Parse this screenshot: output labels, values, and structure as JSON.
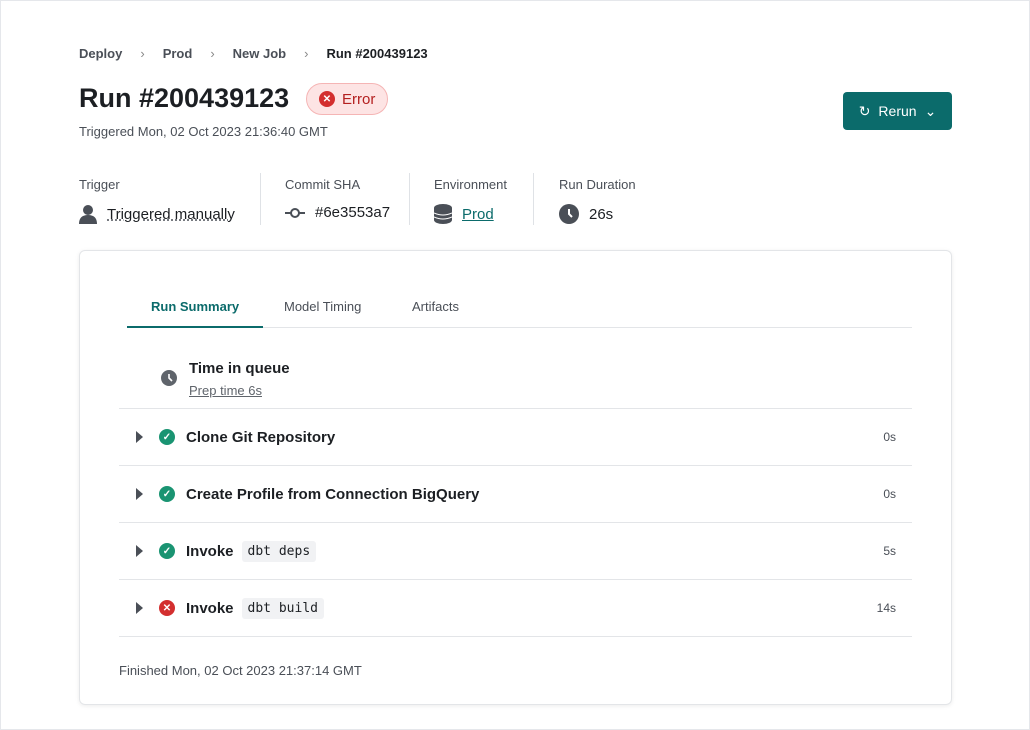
{
  "breadcrumb": [
    "Deploy",
    "Prod",
    "New Job",
    "Run #200439123"
  ],
  "title": "Run #200439123",
  "status": "Error",
  "triggered": "Triggered Mon, 02 Oct 2023 21:36:40 GMT",
  "rerun": "Rerun",
  "meta": {
    "trigger": {
      "label": "Trigger",
      "value": "Triggered manually"
    },
    "commit": {
      "label": "Commit SHA",
      "value": "#6e3553a7"
    },
    "environment": {
      "label": "Environment",
      "value": "Prod"
    },
    "duration": {
      "label": "Run Duration",
      "value": "26s"
    }
  },
  "tabs": [
    "Run Summary",
    "Model Timing",
    "Artifacts"
  ],
  "queue": {
    "title": "Time in queue",
    "prep": "Prep time 6s"
  },
  "steps": [
    {
      "label": "Clone Git Repository",
      "code": "",
      "status": "success",
      "duration": "0s"
    },
    {
      "label": "Create Profile from Connection BigQuery",
      "code": "",
      "status": "success",
      "duration": "0s"
    },
    {
      "label": "Invoke",
      "code": "dbt deps",
      "status": "success",
      "duration": "5s"
    },
    {
      "label": "Invoke",
      "code": "dbt build",
      "status": "error",
      "duration": "14s"
    }
  ],
  "finished": "Finished Mon, 02 Oct 2023 21:37:14 GMT",
  "colors": {
    "accent": "#0b6b6b",
    "success": "#1a9472",
    "error": "#d32f2f"
  }
}
